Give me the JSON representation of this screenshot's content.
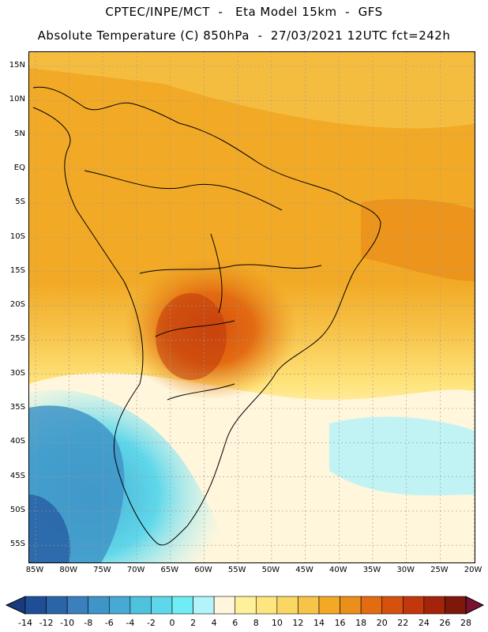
{
  "header": {
    "line1": "CPTEC/INPE/MCT  -   Eta Model 15km  -  GFS",
    "line2": "Absolute Temperature (C) 850hPa  -  27/03/2021 12UTC fct=242h"
  },
  "lat_labels": [
    "15N",
    "10N",
    "5N",
    "EQ",
    "5S",
    "10S",
    "15S",
    "20S",
    "25S",
    "30S",
    "35S",
    "40S",
    "45S",
    "50S",
    "55S"
  ],
  "lon_labels": [
    "85W",
    "80W",
    "75W",
    "70W",
    "65W",
    "60W",
    "55W",
    "50W",
    "45W",
    "40W",
    "35W",
    "30W",
    "25W",
    "20W"
  ],
  "colorbar": {
    "labels": [
      "-14",
      "-12",
      "-10",
      "-8",
      "-6",
      "-4",
      "-2",
      "0",
      "2",
      "4",
      "6",
      "8",
      "10",
      "12",
      "14",
      "16",
      "18",
      "20",
      "22",
      "24",
      "26",
      "28"
    ],
    "colors": [
      "#1e4f96",
      "#2a65a8",
      "#3b7fbc",
      "#3f95c8",
      "#47aad4",
      "#4fc2de",
      "#5fd7ea",
      "#70ecf5",
      "#b3f3fa",
      "#fff6dc",
      "#fff09a",
      "#ffe57d",
      "#fad763",
      "#f7c44a",
      "#f2aa26",
      "#ea8f1a",
      "#e36b12",
      "#d6500e",
      "#c0380c",
      "#a3240a",
      "#7d180a"
    ]
  },
  "map": {
    "region": "South America",
    "field": "temperature_850hPa"
  }
}
